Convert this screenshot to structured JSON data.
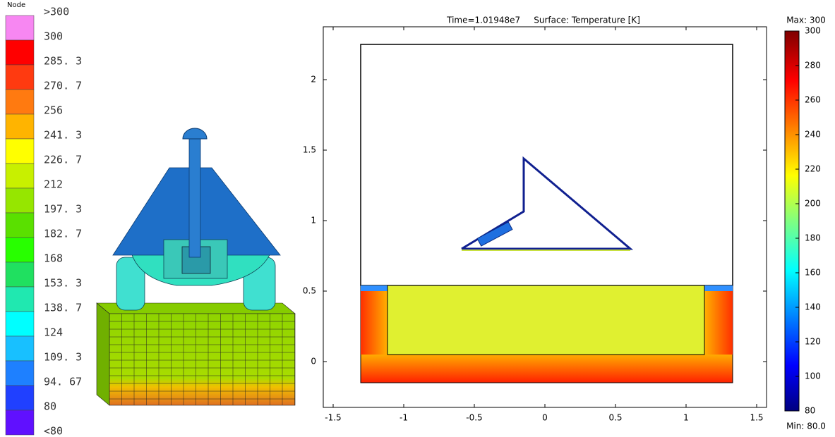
{
  "legend": {
    "header": "Node",
    "labels": [
      ">300",
      "300",
      "285. 3",
      "270. 7",
      "256",
      "241. 3",
      "226. 7",
      "212",
      "197. 3",
      "182. 7",
      "168",
      "153. 3",
      "138. 7",
      "124",
      "109. 3",
      "94. 67",
      "80",
      "<80"
    ],
    "colors": [
      "#f787f2",
      "#ff0000",
      "#ff3a10",
      "#ff7a10",
      "#ffb400",
      "#ffff00",
      "#c8f000",
      "#96e600",
      "#5ae000",
      "#28ff00",
      "#20e060",
      "#20e8b0",
      "#00ffff",
      "#18c0ff",
      "#1e80ff",
      "#2040ff",
      "#6010ff",
      "#2a0a50"
    ]
  },
  "plot": {
    "title": "Time=1.01948e7     Surface: Temperature [K]",
    "xlim": [
      -1.57,
      1.57
    ],
    "ylim": [
      -0.325,
      2.375
    ],
    "xticks": [
      -1.5,
      -1,
      -0.5,
      0,
      0.5,
      1,
      1.5
    ],
    "yticks": [
      0,
      0.5,
      1,
      1.5,
      2
    ]
  },
  "colorbar": {
    "max_label": "Max: 300",
    "min_label": "Min: 80.0",
    "lim": [
      80,
      300
    ],
    "ticks": [
      80,
      100,
      120,
      140,
      160,
      180,
      200,
      220,
      240,
      260,
      280,
      300
    ]
  }
}
